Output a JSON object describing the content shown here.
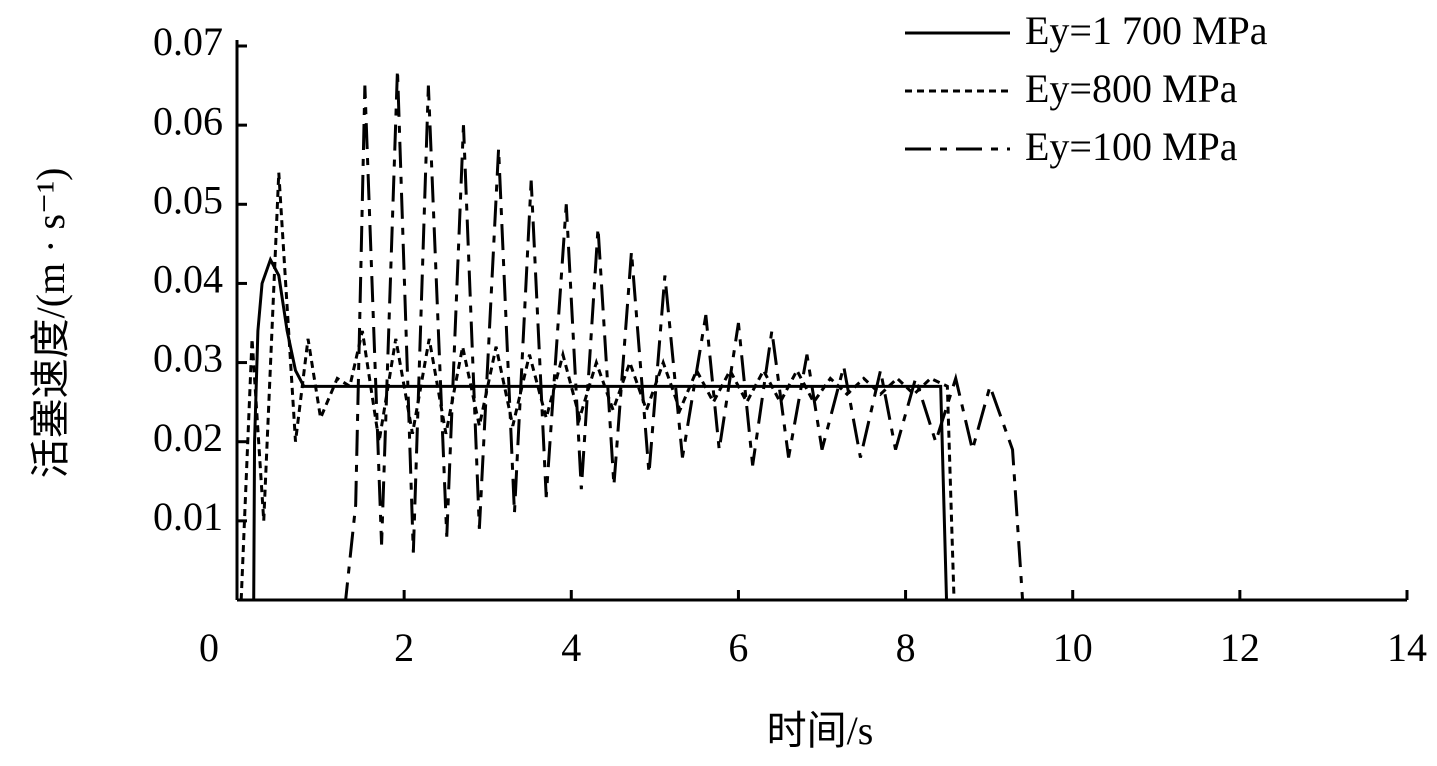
{
  "chart_data": {
    "type": "line",
    "x_label": "时间/s",
    "y_label": "活塞速度/(m · s⁻¹)",
    "xlim": [
      0,
      14
    ],
    "xticks": [
      0,
      2,
      4,
      6,
      8,
      10,
      12,
      14
    ],
    "ylim": [
      0,
      0.07
    ],
    "yticks": [
      0.01,
      0.02,
      0.03,
      0.04,
      0.05,
      0.06,
      0.07
    ],
    "legend": "upper right",
    "series": [
      {
        "name": "Ey=1 700 MPa",
        "color": "#000000",
        "linestyle": "solid",
        "x": [
          0.2,
          0.21,
          0.25,
          0.3,
          0.4,
          0.5,
          0.6,
          0.7,
          0.8,
          1.0,
          2,
          4,
          6,
          8,
          8.42,
          8.49
        ],
        "values": [
          0,
          0.02,
          0.034,
          0.04,
          0.043,
          0.041,
          0.034,
          0.029,
          0.027,
          0.027,
          0.027,
          0.027,
          0.027,
          0.027,
          0.027,
          0
        ]
      },
      {
        "name": "Ey=800 MPa",
        "color": "#000000",
        "linestyle": "dotted",
        "x": [
          0.05,
          0.18,
          0.32,
          0.5,
          0.7,
          0.85,
          1.0,
          1.2,
          1.35,
          1.5,
          1.7,
          1.9,
          2.1,
          2.3,
          2.5,
          2.7,
          2.9,
          3.1,
          3.3,
          3.5,
          3.7,
          3.9,
          4.1,
          4.3,
          4.5,
          4.7,
          4.9,
          5.1,
          5.3,
          5.5,
          5.7,
          5.9,
          6.1,
          6.3,
          6.5,
          6.7,
          6.9,
          7.1,
          7.3,
          7.5,
          7.7,
          7.9,
          8.1,
          8.3,
          8.5,
          8.58
        ],
        "values": [
          0,
          0.033,
          0.01,
          0.054,
          0.02,
          0.033,
          0.023,
          0.028,
          0.027,
          0.034,
          0.02,
          0.033,
          0.021,
          0.033,
          0.021,
          0.032,
          0.022,
          0.032,
          0.022,
          0.031,
          0.023,
          0.031,
          0.023,
          0.03,
          0.024,
          0.03,
          0.024,
          0.03,
          0.024,
          0.029,
          0.025,
          0.029,
          0.025,
          0.029,
          0.025,
          0.029,
          0.025,
          0.028,
          0.026,
          0.028,
          0.026,
          0.028,
          0.026,
          0.028,
          0.027,
          0
        ]
      },
      {
        "name": "Ey=100 MPa",
        "color": "#000000",
        "linestyle": "dashdot",
        "x": [
          1.2,
          1.3,
          1.42,
          1.53,
          1.73,
          1.92,
          2.11,
          2.29,
          2.51,
          2.71,
          2.9,
          3.13,
          3.32,
          3.52,
          3.7,
          3.94,
          4.12,
          4.32,
          4.51,
          4.72,
          4.93,
          5.12,
          5.33,
          5.61,
          5.77,
          6.0,
          6.17,
          6.4,
          6.6,
          6.82,
          7.0,
          7.26,
          7.46,
          7.7,
          7.88,
          8.12,
          8.36,
          8.6,
          8.8,
          9.01,
          9.28,
          9.4
        ],
        "values": [
          0,
          0,
          0.012,
          0.065,
          0.007,
          0.067,
          0.006,
          0.065,
          0.008,
          0.06,
          0.009,
          0.057,
          0.011,
          0.053,
          0.013,
          0.05,
          0.014,
          0.047,
          0.0145,
          0.044,
          0.016,
          0.041,
          0.018,
          0.036,
          0.019,
          0.035,
          0.017,
          0.034,
          0.018,
          0.031,
          0.019,
          0.0295,
          0.018,
          0.029,
          0.019,
          0.028,
          0.02,
          0.028,
          0.019,
          0.027,
          0.019,
          0
        ]
      }
    ]
  }
}
